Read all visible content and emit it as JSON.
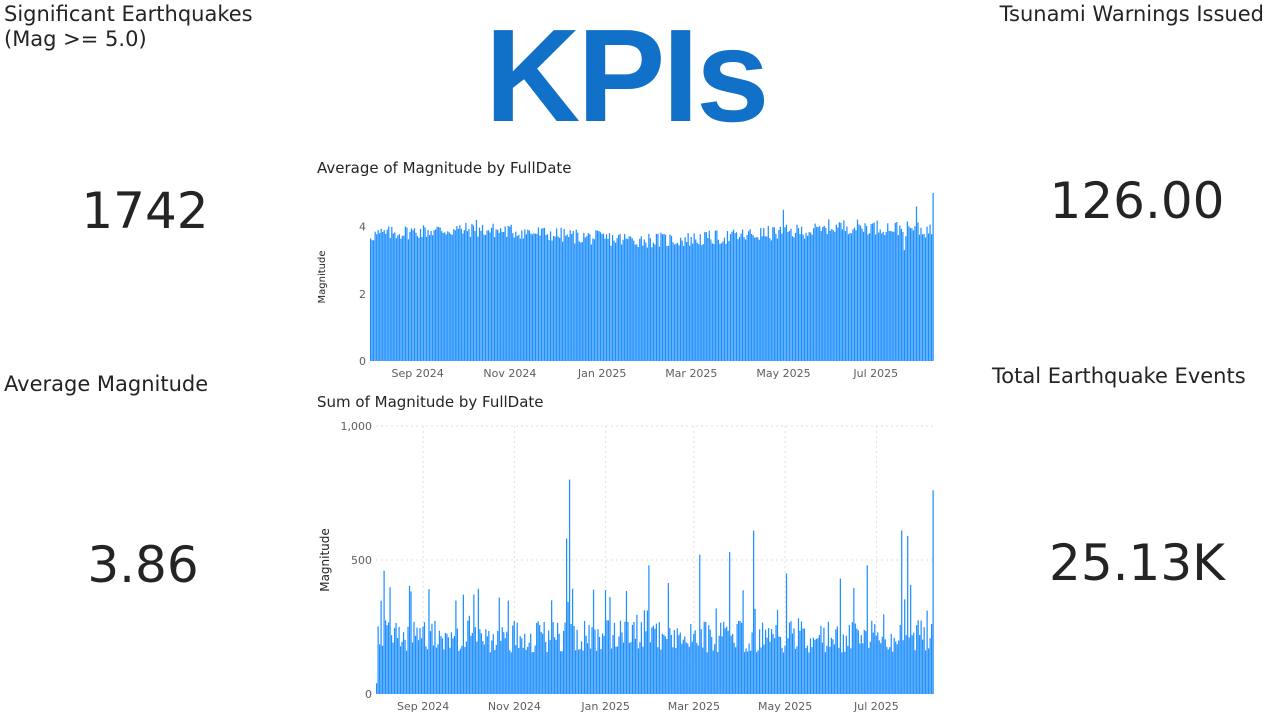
{
  "headline": "KPIs",
  "kpis": {
    "significant": {
      "label_line1": "Significant Earthquakes",
      "label_line2": "(Mag >= 5.0)",
      "value": "1742"
    },
    "tsunami": {
      "label": "Tsunami Warnings Issued",
      "value": "126.00"
    },
    "avg_magnitude": {
      "label": "Average Magnitude",
      "value": "3.86"
    },
    "total_events": {
      "label": "Total Earthquake Events",
      "value": "25.13K"
    }
  },
  "chart_data": [
    {
      "type": "bar",
      "title": "Average of Magnitude by FullDate",
      "xlabel": "",
      "ylabel": "Magnitude",
      "x_range": [
        "2024-08-01",
        "2025-08-08"
      ],
      "ylim": [
        0,
        5
      ],
      "yticks": [
        0,
        2,
        4
      ],
      "xtick_labels": [
        {
          "label": "Sep 2024",
          "date": "2024-09-01"
        },
        {
          "label": "Nov 2024",
          "date": "2024-11-01"
        },
        {
          "label": "Jan 2025",
          "date": "2025-01-01"
        },
        {
          "label": "Mar 2025",
          "date": "2025-03-01"
        },
        {
          "label": "May 2025",
          "date": "2025-05-01"
        },
        {
          "label": "Jul 2025",
          "date": "2025-07-01"
        }
      ],
      "typical_value": 3.86,
      "highlights": [
        {
          "date": "2024-10-10",
          "value": 4.2
        },
        {
          "date": "2025-05-01",
          "value": 4.5
        },
        {
          "date": "2025-07-20",
          "value": 3.3
        },
        {
          "date": "2025-07-28",
          "value": 4.6
        },
        {
          "date": "2025-08-08",
          "value": 5.0
        }
      ],
      "grid": false,
      "color": "#1F8FFF"
    },
    {
      "type": "bar",
      "title": "Sum of Magnitude by FullDate",
      "xlabel": "",
      "ylabel": "Magnitude",
      "x_range": [
        "2024-08-01",
        "2025-08-08"
      ],
      "ylim": [
        0,
        1000
      ],
      "yticks": [
        0,
        500,
        1000
      ],
      "ytick_labels": [
        "0",
        "500",
        "1,000"
      ],
      "xtick_labels": [
        {
          "label": "Sep 2024",
          "date": "2024-09-01"
        },
        {
          "label": "Nov 2024",
          "date": "2024-11-01"
        },
        {
          "label": "Jan 2025",
          "date": "2025-01-01"
        },
        {
          "label": "Mar 2025",
          "date": "2025-03-01"
        },
        {
          "label": "May 2025",
          "date": "2025-05-01"
        },
        {
          "label": "Jul 2025",
          "date": "2025-07-01"
        }
      ],
      "typical_value": 250,
      "highlights": [
        {
          "date": "2024-08-01",
          "value": 40
        },
        {
          "date": "2024-08-06",
          "value": 460
        },
        {
          "date": "2024-12-06",
          "value": 580
        },
        {
          "date": "2024-12-08",
          "value": 800
        },
        {
          "date": "2025-01-30",
          "value": 480
        },
        {
          "date": "2025-03-05",
          "value": 520
        },
        {
          "date": "2025-03-25",
          "value": 530
        },
        {
          "date": "2025-04-10",
          "value": 610
        },
        {
          "date": "2025-05-02",
          "value": 450
        },
        {
          "date": "2025-06-25",
          "value": 480
        },
        {
          "date": "2025-07-18",
          "value": 610
        },
        {
          "date": "2025-07-22",
          "value": 590
        },
        {
          "date": "2025-08-08",
          "value": 760
        }
      ],
      "grid": true,
      "color": "#1F8FFF"
    }
  ]
}
